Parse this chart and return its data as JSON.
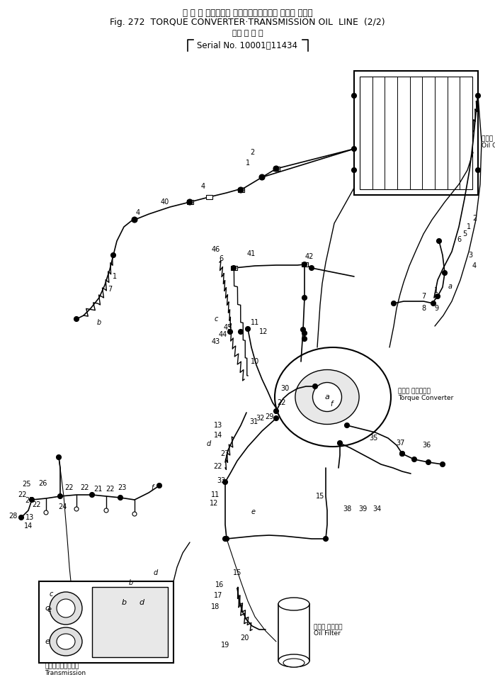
{
  "bg_color": "#ffffff",
  "fg_color": "#000000",
  "fig_width": 6.99,
  "fig_height": 9.86,
  "dpi": 100,
  "title1": "ト ル ク コンバータ トランスミッション オイル ライン",
  "title2": "Fig. 272  TORQUE CONVERTER·TRANSMISSION OIL  LINE  (2/2)",
  "serial1": "（適 用 号 機",
  "serial2": "Serial No. 10001～11434"
}
